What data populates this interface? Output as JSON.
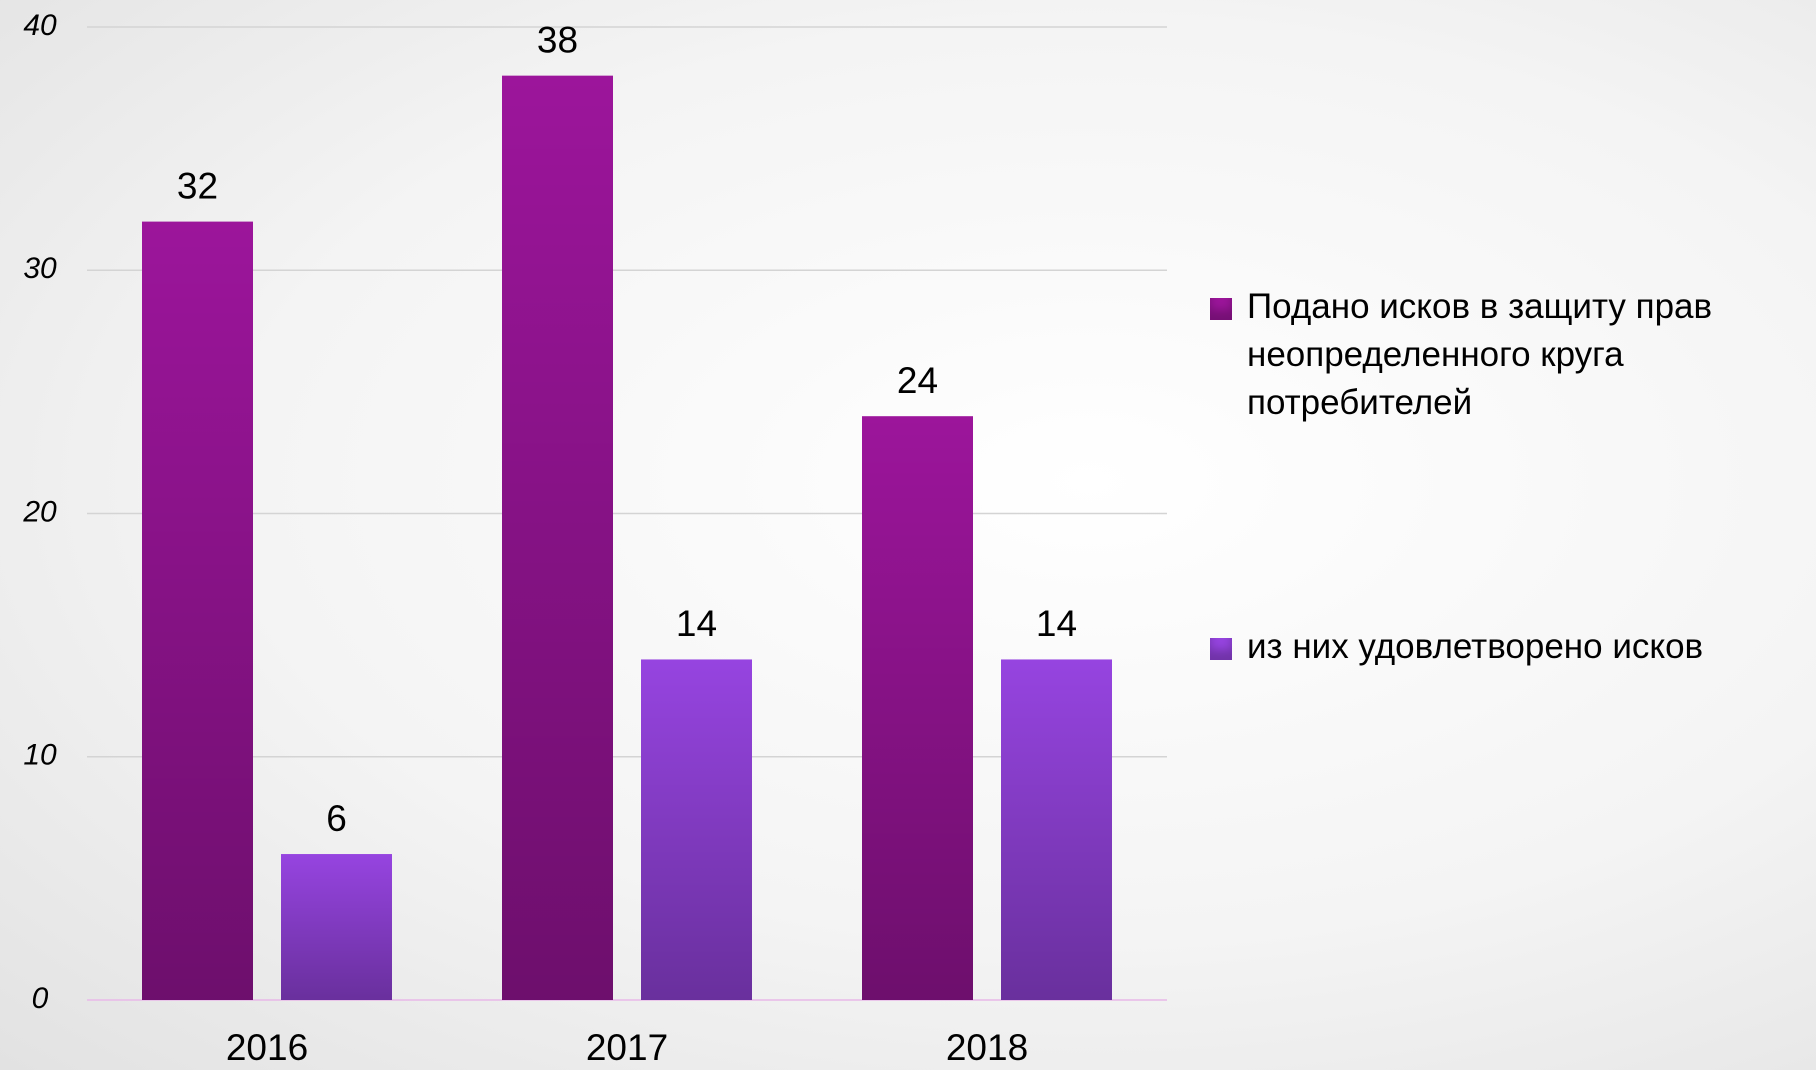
{
  "chart_data": {
    "type": "bar",
    "categories": [
      "2016",
      "2017",
      "2018"
    ],
    "series": [
      {
        "name": "Подано исков в защиту прав неопределенного круга потребителей",
        "color": "#9c159b",
        "values": [
          32,
          38,
          24
        ]
      },
      {
        "name": "из них удовлетворено исков",
        "color": "#9644e0",
        "values": [
          6,
          14,
          14
        ]
      }
    ],
    "ylim": [
      0,
      40
    ],
    "yticks": [
      0,
      10,
      20,
      30,
      40
    ],
    "grid": true,
    "legend": "right"
  }
}
